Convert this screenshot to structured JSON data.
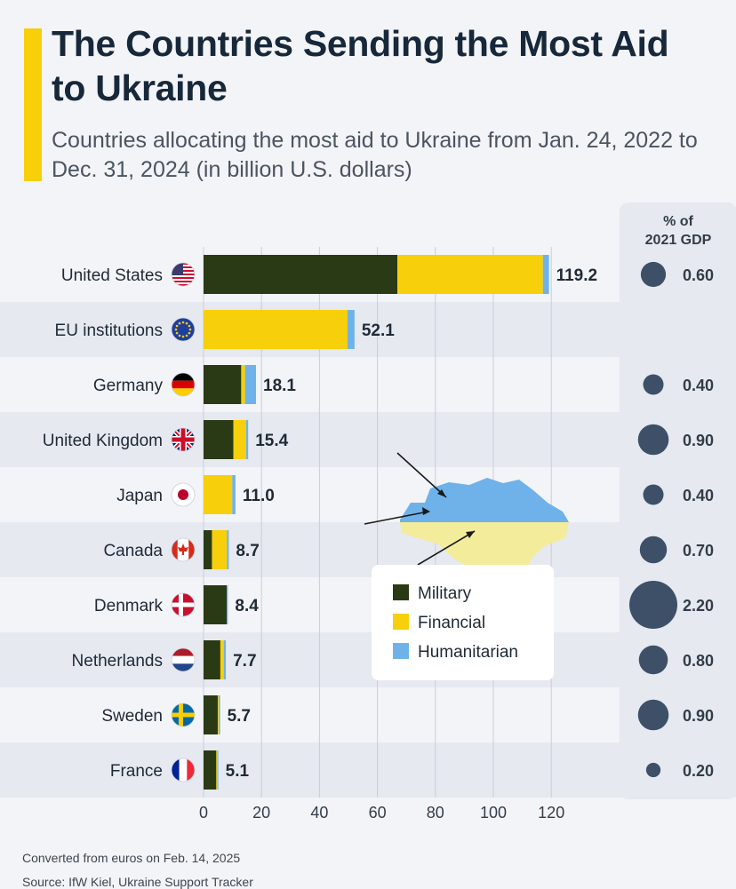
{
  "title": "The Countries Sending the Most Aid to Ukraine",
  "subtitle": "Countries allocating the most aid to Ukraine from Jan. 24, 2022 to Dec. 31, 2024 (in billion U.S. dollars)",
  "gdp_header": [
    "% of",
    "2021 GDP"
  ],
  "footer": {
    "note": "Converted from euros on Feb. 14, 2025",
    "source": "Source: IfW Kiel, Ukraine Support Tracker"
  },
  "colors": {
    "military": "#2a3a14",
    "financial": "#f7cf0a",
    "humanitarian": "#6fb2ea",
    "gdp_bubble": "#3d5068",
    "band": "#e6e9f0",
    "gdp_column": "#e6e9f0"
  },
  "chart_data": {
    "type": "bar",
    "orientation": "horizontal",
    "stacked": true,
    "categories": [
      "United States",
      "EU institutions",
      "Germany",
      "United Kingdom",
      "Japan",
      "Canada",
      "Denmark",
      "Netherlands",
      "Sweden",
      "France"
    ],
    "flag_icons": [
      "us-flag-icon",
      "eu-flag-icon",
      "germany-flag-icon",
      "uk-flag-icon",
      "japan-flag-icon",
      "canada-flag-icon",
      "denmark-flag-icon",
      "netherlands-flag-icon",
      "sweden-flag-icon",
      "france-flag-icon"
    ],
    "series": [
      {
        "name": "Military",
        "values": [
          66.9,
          0,
          13.0,
          10.3,
          0,
          2.9,
          8.0,
          5.8,
          4.9,
          4.4
        ]
      },
      {
        "name": "Financial",
        "values": [
          50.2,
          49.7,
          1.3,
          4.4,
          9.9,
          5.2,
          0,
          1.2,
          0.3,
          0.4
        ]
      },
      {
        "name": "Humanitarian",
        "values": [
          2.1,
          2.4,
          3.8,
          0.7,
          1.1,
          0.6,
          0.4,
          0.7,
          0.5,
          0.3
        ]
      }
    ],
    "totals": [
      119.2,
      52.1,
      18.1,
      15.4,
      11.0,
      8.7,
      8.4,
      7.7,
      5.7,
      5.1
    ],
    "total_labels": [
      "119.2",
      "52.1",
      "18.1",
      "15.4",
      "11.0",
      "8.7",
      "8.4",
      "7.7",
      "5.7",
      "5.1"
    ],
    "gdp_share_percent": [
      0.6,
      null,
      0.4,
      0.9,
      0.4,
      0.7,
      2.2,
      0.8,
      0.9,
      0.2
    ],
    "gdp_share_labels": [
      "0.60",
      "",
      "0.40",
      "0.90",
      "0.40",
      "0.70",
      "2.20",
      "0.80",
      "0.90",
      "0.20"
    ],
    "xlim": [
      0,
      120
    ],
    "xticks": [
      0,
      20,
      40,
      60,
      80,
      100,
      120
    ],
    "grid": true,
    "legend_position": "center-right, over Ukraine map"
  }
}
